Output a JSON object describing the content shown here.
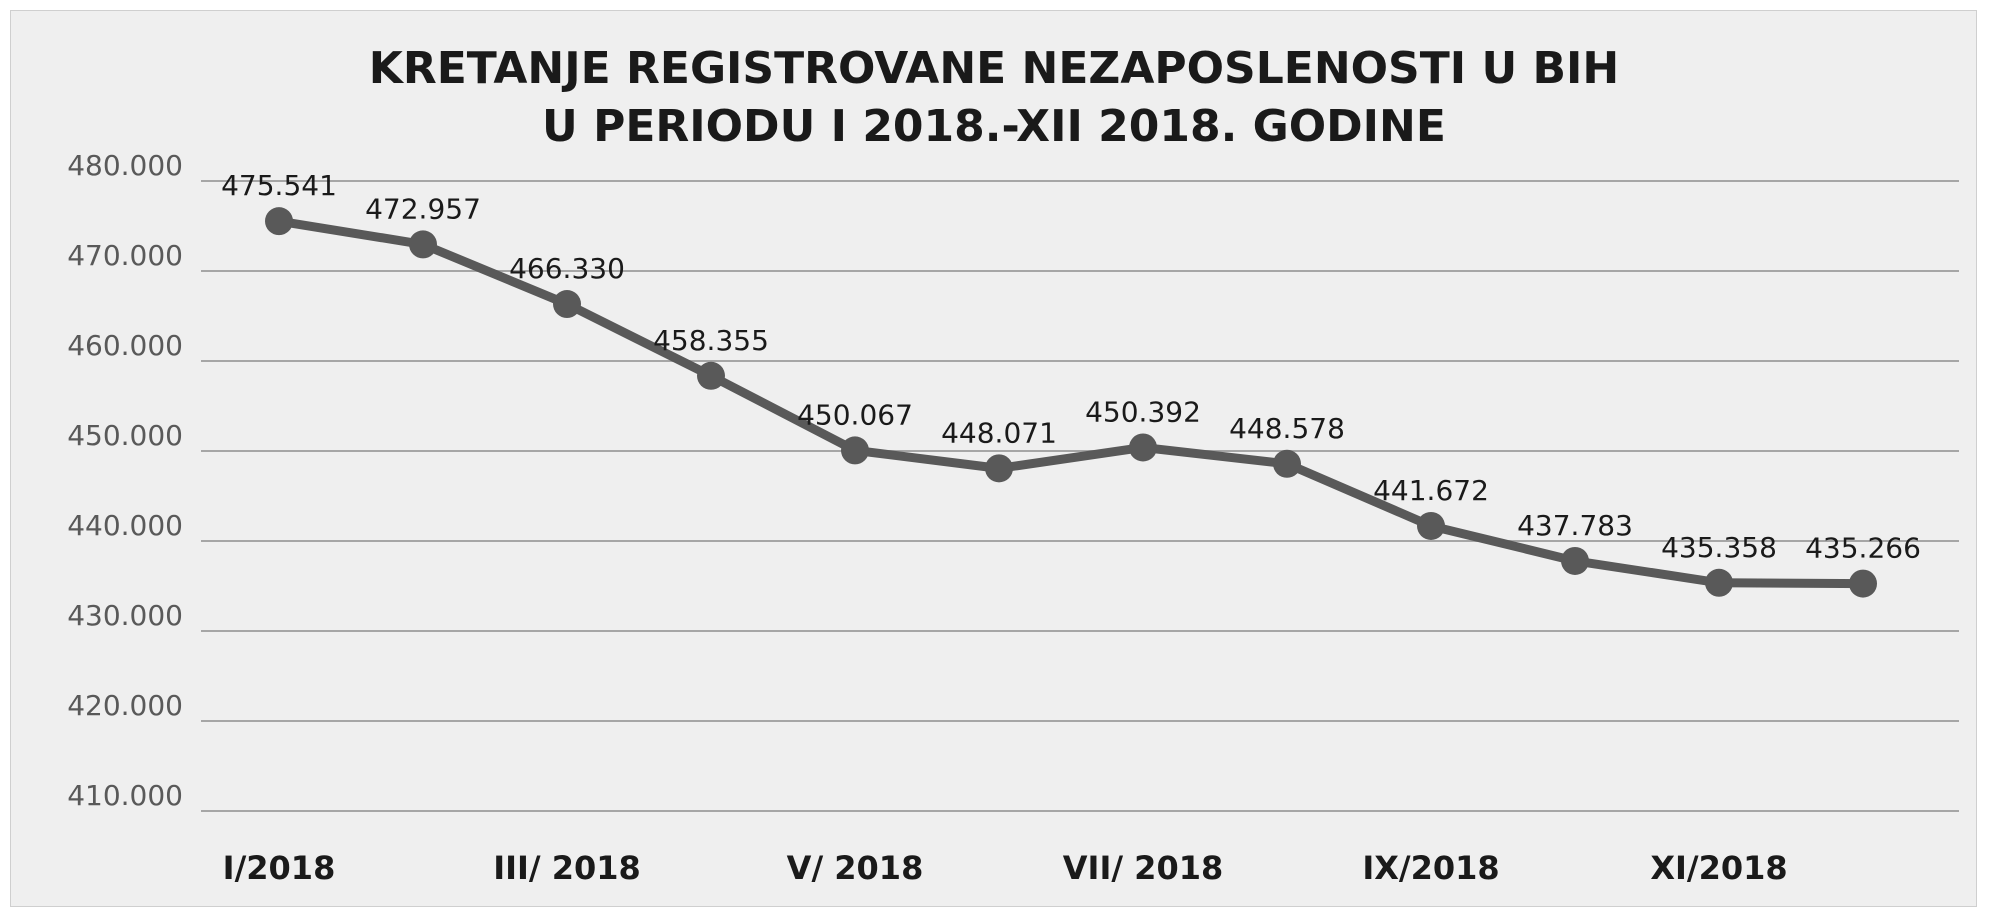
{
  "chart_data": {
    "type": "line",
    "title": [
      "KRETANJE REGISTROVANE NEZAPOSLENOSTI U BIH",
      "U PERIODU I 2018.-XII 2018. GODINE"
    ],
    "xlabel": "",
    "ylabel": "",
    "ylim": [
      410000,
      480000
    ],
    "y_ticks": [
      410000,
      420000,
      430000,
      440000,
      450000,
      460000,
      470000,
      480000
    ],
    "y_tick_labels": [
      "410.000",
      "420.000",
      "430.000",
      "440.000",
      "450.000",
      "460.000",
      "470.000",
      "480.000"
    ],
    "categories": [
      "I/2018",
      "",
      "III/ 2018",
      "",
      "V/ 2018",
      "",
      "VII/ 2018",
      "",
      "IX/2018",
      "",
      "XI/2018",
      ""
    ],
    "values": [
      475541,
      472957,
      466330,
      458355,
      450067,
      448071,
      450392,
      448578,
      441672,
      437783,
      435358,
      435266
    ],
    "data_labels": [
      "475.541",
      "472.957",
      "466.330",
      "458.355",
      "450.067",
      "448.071",
      "450.392",
      "448.578",
      "441.672",
      "437.783",
      "435.358",
      "435.266"
    ],
    "grid": true,
    "legend": "none",
    "series_color": "#595959"
  }
}
